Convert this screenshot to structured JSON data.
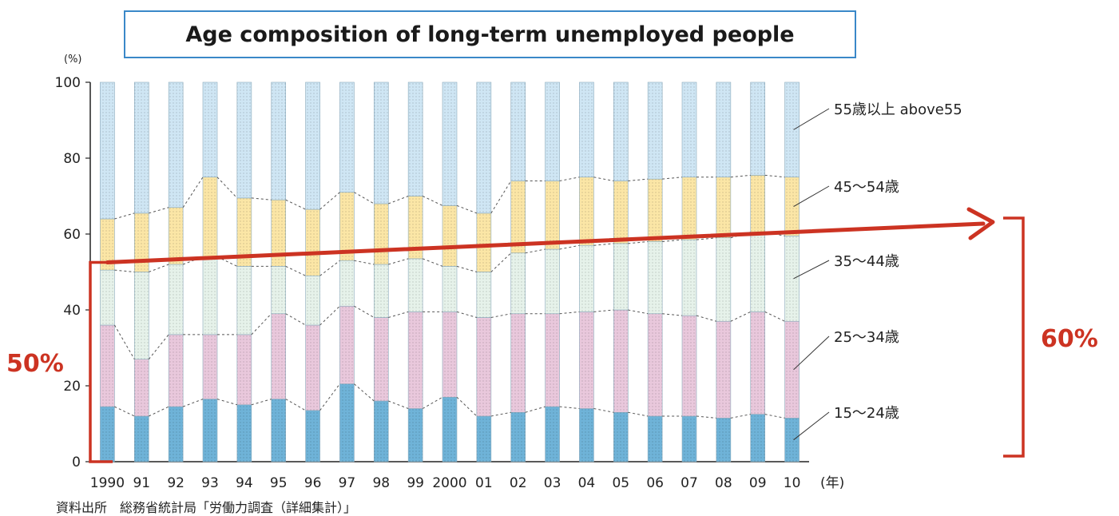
{
  "chart_data": {
    "type": "bar",
    "stacked": true,
    "title": "Age composition of long-term unemployed people",
    "y_unit": "(%)",
    "x_unit": "(年)",
    "ylim": [
      0,
      100
    ],
    "yticks": [
      0,
      20,
      40,
      60,
      80,
      100
    ],
    "categories": [
      "1990",
      "91",
      "92",
      "93",
      "94",
      "95",
      "96",
      "97",
      "98",
      "99",
      "2000",
      "01",
      "02",
      "03",
      "04",
      "05",
      "06",
      "07",
      "08",
      "09",
      "10"
    ],
    "cumulative_series": [
      {
        "name": "15～24歳",
        "color": "#6fb3d8",
        "values": [
          14.5,
          12,
          14.5,
          16.5,
          15,
          16.5,
          13.5,
          20.5,
          16,
          14,
          17,
          12,
          13,
          14.5,
          14,
          13,
          12,
          12,
          11.5,
          12.5,
          11.5
        ]
      },
      {
        "name": "25～34歳",
        "color": "#e9c8dc",
        "values": [
          36,
          27,
          33.5,
          33.5,
          33.5,
          39,
          36,
          41,
          38,
          39.5,
          39.5,
          38,
          39,
          39,
          39.5,
          40,
          39,
          38.5,
          37,
          39.5,
          37
        ]
      },
      {
        "name": "35～44歳",
        "color": "#e6f2ea",
        "values": [
          50.5,
          50,
          52,
          54,
          51.5,
          51.5,
          49,
          53,
          52,
          53.5,
          51.5,
          50,
          55,
          56,
          57,
          57.5,
          58,
          58.5,
          59,
          60.5,
          59.5
        ]
      },
      {
        "name": "45～54歳",
        "color": "#fbe6a6",
        "values": [
          64,
          65.5,
          67,
          75,
          69.5,
          69,
          66.5,
          71,
          68,
          70,
          67.5,
          65.5,
          74,
          74,
          75,
          74,
          74.5,
          75,
          75,
          75.5,
          75
        ]
      },
      {
        "name": "55歳以上 above55",
        "color": "#cfe6f4",
        "values": [
          100,
          100,
          100,
          100,
          100,
          100,
          100,
          100,
          100,
          100,
          100,
          100,
          100,
          100,
          100,
          100,
          100,
          100,
          100,
          100,
          100
        ]
      }
    ],
    "legend_labels": [
      "55歳以上 above55",
      "45～54歳",
      "35～44歳",
      "25～34歳",
      "15～24歳"
    ],
    "annotations": {
      "left_label": "50%",
      "right_label": "60%",
      "arrow_from": {
        "category": "1990",
        "value": 50
      },
      "arrow_to": {
        "value": 60
      },
      "accent_color": "#cc3322"
    },
    "grid": false
  },
  "source_note": "資料出所　総務省統計局「労働力調査（詳細集計）」"
}
